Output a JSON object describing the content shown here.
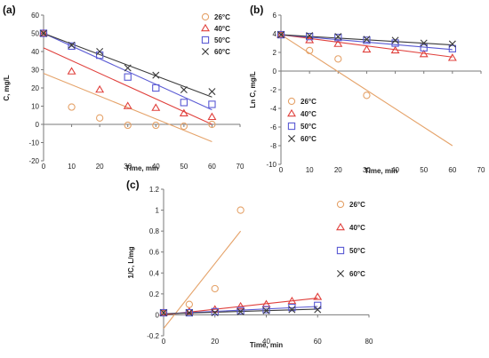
{
  "colors": {
    "c26": "#E5A36A",
    "c40": "#E0403C",
    "c50": "#5A5AD4",
    "c60": "#3A3A3A"
  },
  "chart_data": [
    {
      "type": "scatter",
      "panel_label": "(a)",
      "xlabel": "Time, min",
      "ylabel": "C, mg/L",
      "xlim": [
        0,
        70
      ],
      "ylim": [
        -20,
        60
      ],
      "xticks": [
        0,
        10,
        20,
        30,
        40,
        50,
        60,
        70
      ],
      "yticks": [
        -20,
        -10,
        0,
        10,
        20,
        30,
        40,
        50,
        60
      ],
      "legend_position": "top-right",
      "series": [
        {
          "name": "26°C",
          "key": "c26",
          "marker": "circle",
          "x": [
            0,
            10,
            20,
            30,
            40,
            50,
            60
          ],
          "y": [
            50,
            9.5,
            3.5,
            -0.5,
            -0.5,
            -1,
            0
          ],
          "fit": [
            [
              0,
              28
            ],
            [
              60,
              -9.5
            ]
          ]
        },
        {
          "name": "40°C",
          "key": "c40",
          "marker": "triangle",
          "x": [
            0,
            10,
            20,
            30,
            40,
            50,
            60
          ],
          "y": [
            50,
            29,
            19,
            10,
            9,
            6,
            4
          ],
          "fit": [
            [
              0,
              42
            ],
            [
              60,
              0
            ]
          ]
        },
        {
          "name": "50°C",
          "key": "c50",
          "marker": "square",
          "x": [
            0,
            10,
            20,
            30,
            40,
            50,
            60
          ],
          "y": [
            50,
            43,
            38,
            26,
            20,
            12,
            11
          ],
          "fit": [
            [
              0,
              50
            ],
            [
              60,
              8
            ]
          ]
        },
        {
          "name": "60°C",
          "key": "c60",
          "marker": "x",
          "x": [
            0,
            10,
            20,
            30,
            40,
            50,
            60
          ],
          "y": [
            50,
            43.5,
            40,
            31,
            27,
            19,
            18
          ],
          "fit": [
            [
              0,
              50
            ],
            [
              60,
              15
            ]
          ]
        }
      ]
    },
    {
      "type": "scatter",
      "panel_label": "(b)",
      "xlabel": "Time, min",
      "ylabel": "Ln C, mg/L",
      "xlim": [
        0,
        70
      ],
      "ylim": [
        -10,
        6
      ],
      "xticks": [
        0,
        10,
        20,
        30,
        40,
        50,
        60,
        70
      ],
      "yticks": [
        -10,
        -8,
        -6,
        -4,
        -2,
        0,
        2,
        4,
        6
      ],
      "legend_position": "bottom-left",
      "series": [
        {
          "name": "26°C",
          "key": "c26",
          "marker": "circle",
          "x": [
            0,
            10,
            20,
            30
          ],
          "y": [
            3.9,
            2.2,
            1.3,
            -2.6
          ],
          "fit": [
            [
              0,
              3.9
            ],
            [
              60,
              -8
            ]
          ]
        },
        {
          "name": "40°C",
          "key": "c40",
          "marker": "triangle",
          "x": [
            0,
            10,
            20,
            30,
            40,
            50,
            60
          ],
          "y": [
            3.9,
            3.3,
            2.9,
            2.3,
            2.2,
            1.8,
            1.4
          ],
          "fit": [
            [
              0,
              3.9
            ],
            [
              60,
              1.5
            ]
          ]
        },
        {
          "name": "50°C",
          "key": "c50",
          "marker": "square",
          "x": [
            0,
            10,
            20,
            30,
            40,
            50,
            60
          ],
          "y": [
            3.9,
            3.7,
            3.6,
            3.3,
            3.0,
            2.5,
            2.4
          ],
          "fit": [
            [
              0,
              3.9
            ],
            [
              60,
              2.3
            ]
          ]
        },
        {
          "name": "60°C",
          "key": "c60",
          "marker": "x",
          "x": [
            0,
            10,
            20,
            30,
            40,
            50,
            60
          ],
          "y": [
            3.9,
            3.8,
            3.7,
            3.4,
            3.3,
            3.0,
            2.9
          ],
          "fit": [
            [
              0,
              3.9
            ],
            [
              60,
              2.8
            ]
          ]
        }
      ]
    },
    {
      "type": "scatter",
      "panel_label": "(c)",
      "xlabel": "Time, min",
      "ylabel": "1/C, L/mg",
      "xlim": [
        0,
        80
      ],
      "ylim": [
        -0.2,
        1.2
      ],
      "xticks": [
        0,
        20,
        40,
        60,
        80
      ],
      "yticks": [
        -0.2,
        0,
        0.2,
        0.4,
        0.6,
        0.8,
        1,
        1.2
      ],
      "legend_position": "right",
      "series": [
        {
          "name": "26°C",
          "key": "c26",
          "marker": "circle",
          "x": [
            0,
            10,
            20,
            30
          ],
          "y": [
            0.02,
            0.1,
            0.25,
            1.0
          ],
          "fit": [
            [
              0,
              -0.13
            ],
            [
              30,
              0.8
            ]
          ]
        },
        {
          "name": "40°C",
          "key": "c40",
          "marker": "triangle",
          "x": [
            0,
            10,
            20,
            30,
            40,
            50,
            60
          ],
          "y": [
            0.02,
            0.03,
            0.05,
            0.08,
            0.1,
            0.13,
            0.17
          ],
          "fit": [
            [
              0,
              0.0
            ],
            [
              60,
              0.16
            ]
          ]
        },
        {
          "name": "50°C",
          "key": "c50",
          "marker": "square",
          "x": [
            0,
            10,
            20,
            30,
            40,
            50,
            60
          ],
          "y": [
            0.02,
            0.02,
            0.03,
            0.04,
            0.05,
            0.07,
            0.09
          ],
          "fit": [
            [
              0,
              0.01
            ],
            [
              60,
              0.08
            ]
          ]
        },
        {
          "name": "60°C",
          "key": "c60",
          "marker": "x",
          "x": [
            0,
            10,
            20,
            30,
            40,
            50,
            60
          ],
          "y": [
            0.02,
            0.02,
            0.02,
            0.03,
            0.04,
            0.05,
            0.05
          ],
          "fit": [
            [
              0,
              0.01
            ],
            [
              60,
              0.055
            ]
          ]
        }
      ]
    }
  ]
}
